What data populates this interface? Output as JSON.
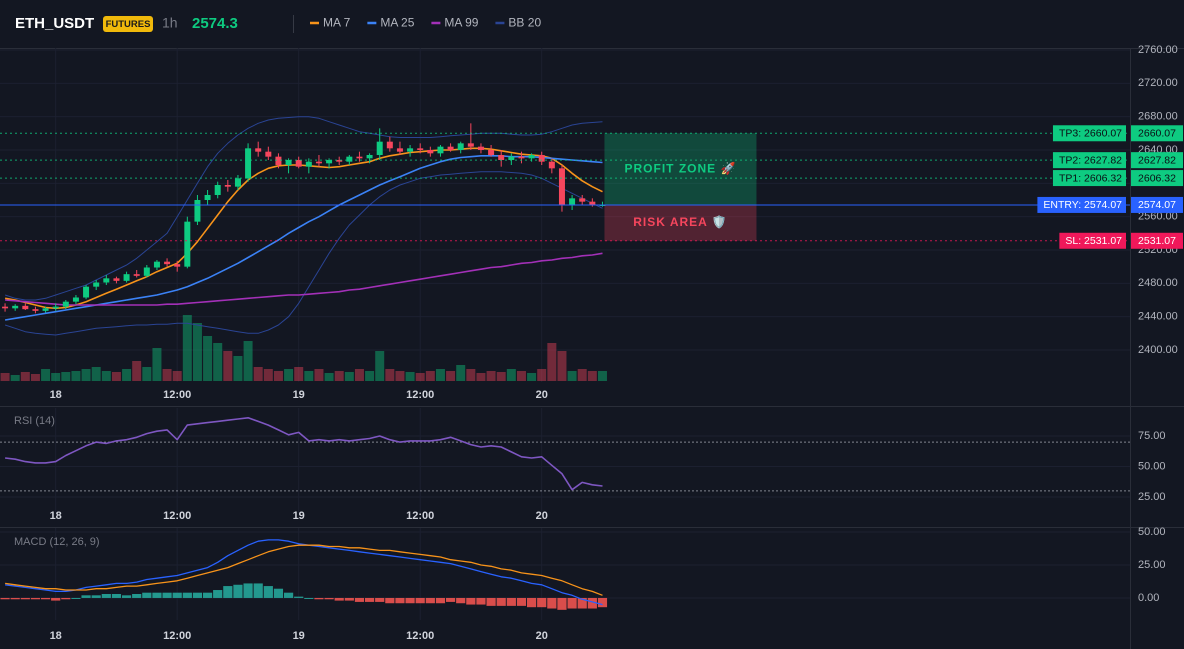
{
  "header": {
    "symbol": "ETH_USDT",
    "badge": "FUTURES",
    "interval": "1h",
    "price": "2574.3"
  },
  "chart_data": [
    {
      "type": "candlestick",
      "xlim": [
        -0.5,
        111.1
      ],
      "xticks": [
        {
          "value": 5,
          "label": "18"
        },
        {
          "value": 17,
          "label": "12:00"
        },
        {
          "value": 29,
          "label": "19"
        },
        {
          "value": 41,
          "label": "12:00"
        },
        {
          "value": 53,
          "label": "20"
        }
      ],
      "ylim": [
        2361.6,
        2762.4
      ],
      "yticks": [
        {
          "value": 2400,
          "label": "2400.00"
        },
        {
          "value": 2440,
          "label": "2440.00"
        },
        {
          "value": 2480,
          "label": "2480.00"
        },
        {
          "value": 2520,
          "label": "2520.00"
        },
        {
          "value": 2560,
          "label": "2560.00"
        },
        {
          "value": 2600,
          "label": "2600.00"
        },
        {
          "value": 2640,
          "label": "2640.00"
        },
        {
          "value": 2680,
          "label": "2680.00"
        },
        {
          "value": 2720,
          "label": "2720.00"
        },
        {
          "value": 2760,
          "label": "2760.00"
        }
      ],
      "grid": true,
      "up_color": "#0ecb81",
      "down_color": "#f6465d",
      "open": [
        2452,
        2450,
        2453,
        2449,
        2447,
        2450,
        2452,
        2458,
        2463,
        2476,
        2481,
        2486,
        2483,
        2491,
        2489,
        2499,
        2506,
        2503,
        2500,
        2554,
        2580,
        2586,
        2598,
        2596,
        2606,
        2642,
        2638,
        2632,
        2622,
        2628,
        2620,
        2626,
        2624,
        2628,
        2626,
        2632,
        2630,
        2634,
        2650,
        2642,
        2638,
        2642,
        2640,
        2636,
        2644,
        2640,
        2648,
        2644,
        2640,
        2634,
        2628,
        2632,
        2630,
        2634,
        2626,
        2618,
        2574,
        2582,
        2578,
        2574
      ],
      "high": [
        2456,
        2455,
        2456,
        2452,
        2452,
        2456,
        2460,
        2466,
        2478,
        2484,
        2490,
        2488,
        2494,
        2496,
        2502,
        2508,
        2510,
        2507,
        2560,
        2586,
        2592,
        2602,
        2604,
        2610,
        2648,
        2650,
        2644,
        2636,
        2630,
        2632,
        2630,
        2634,
        2630,
        2632,
        2634,
        2638,
        2636,
        2666,
        2656,
        2650,
        2646,
        2648,
        2644,
        2646,
        2648,
        2650,
        2672,
        2648,
        2646,
        2640,
        2636,
        2638,
        2636,
        2638,
        2630,
        2622,
        2586,
        2586,
        2582,
        2578
      ],
      "low": [
        2446,
        2447,
        2448,
        2444,
        2445,
        2447,
        2449,
        2455,
        2461,
        2472,
        2478,
        2480,
        2481,
        2487,
        2487,
        2496,
        2500,
        2494,
        2498,
        2550,
        2574,
        2582,
        2590,
        2592,
        2602,
        2632,
        2628,
        2618,
        2612,
        2618,
        2612,
        2620,
        2618,
        2622,
        2622,
        2626,
        2624,
        2628,
        2638,
        2634,
        2632,
        2636,
        2632,
        2632,
        2638,
        2636,
        2640,
        2636,
        2632,
        2620,
        2622,
        2624,
        2626,
        2622,
        2612,
        2566,
        2568,
        2574,
        2572,
        2572
      ],
      "close": [
        2450,
        2453,
        2449,
        2447,
        2450,
        2452,
        2458,
        2463,
        2476,
        2481,
        2486,
        2483,
        2491,
        2489,
        2499,
        2506,
        2503,
        2500,
        2554,
        2580,
        2586,
        2598,
        2596,
        2606,
        2642,
        2638,
        2632,
        2622,
        2628,
        2620,
        2626,
        2624,
        2628,
        2626,
        2632,
        2630,
        2634,
        2650,
        2642,
        2638,
        2642,
        2640,
        2636,
        2644,
        2640,
        2648,
        2644,
        2640,
        2634,
        2628,
        2632,
        2630,
        2634,
        2626,
        2618,
        2574,
        2582,
        2578,
        2574,
        2574
      ],
      "volume": [
        8,
        6,
        9,
        7,
        12,
        8,
        9,
        10,
        12,
        14,
        10,
        9,
        12,
        20,
        14,
        33,
        12,
        10,
        66,
        58,
        45,
        38,
        30,
        25,
        40,
        14,
        12,
        10,
        12,
        14,
        10,
        12,
        8,
        10,
        9,
        12,
        10,
        30,
        12,
        10,
        9,
        8,
        10,
        12,
        10,
        16,
        12,
        8,
        10,
        9,
        12,
        10,
        8,
        12,
        38,
        30,
        10,
        12,
        10,
        10
      ],
      "series": [
        {
          "name": "MA 7",
          "color": "#f7931a",
          "values": [
            2462,
            2460,
            2457,
            2454,
            2451,
            2450,
            2451,
            2454,
            2458,
            2463,
            2468,
            2473,
            2478,
            2483,
            2488,
            2494,
            2499,
            2504,
            2516,
            2530,
            2546,
            2562,
            2578,
            2592,
            2604,
            2612,
            2618,
            2621,
            2622,
            2622,
            2621,
            2620,
            2619,
            2620,
            2622,
            2624,
            2626,
            2630,
            2633,
            2635,
            2637,
            2638,
            2639,
            2640,
            2640,
            2641,
            2642,
            2642,
            2641,
            2639,
            2637,
            2635,
            2634,
            2633,
            2630,
            2622,
            2612,
            2603,
            2596,
            2590
          ]
        },
        {
          "name": "MA 25",
          "color": "#3b82f6",
          "values": [
            2436,
            2438,
            2440,
            2442,
            2444,
            2446,
            2448,
            2450,
            2452,
            2454,
            2456,
            2458,
            2460,
            2462,
            2464,
            2466,
            2469,
            2472,
            2476,
            2481,
            2486,
            2492,
            2498,
            2504,
            2511,
            2518,
            2525,
            2532,
            2540,
            2547,
            2554,
            2560,
            2567,
            2574,
            2580,
            2586,
            2592,
            2598,
            2603,
            2608,
            2613,
            2618,
            2622,
            2626,
            2629,
            2631,
            2632,
            2633,
            2633,
            2633,
            2632,
            2632,
            2632,
            2631,
            2630,
            2629,
            2628,
            2627,
            2626,
            2625
          ]
        },
        {
          "name": "MA 99",
          "color": "#a330b8",
          "values": [
            2460,
            2459,
            2458,
            2457,
            2456,
            2455,
            2454,
            2454,
            2454,
            2454,
            2454,
            2454,
            2454,
            2454,
            2454,
            2454,
            2455,
            2455,
            2456,
            2457,
            2458,
            2459,
            2460,
            2461,
            2462,
            2463,
            2464,
            2465,
            2466,
            2466,
            2467,
            2468,
            2469,
            2470,
            2472,
            2473,
            2475,
            2477,
            2479,
            2481,
            2483,
            2485,
            2487,
            2489,
            2491,
            2493,
            2495,
            2497,
            2499,
            2500,
            2502,
            2504,
            2505,
            2507,
            2508,
            2510,
            2511,
            2513,
            2514,
            2516
          ]
        },
        {
          "name": "BB 20",
          "color": "#2a4494",
          "values": [
            2466,
            2462,
            2460,
            2460,
            2462,
            2466,
            2470,
            2474,
            2478,
            2484,
            2490,
            2496,
            2502,
            2510,
            2520,
            2530,
            2540,
            2560,
            2580,
            2600,
            2620,
            2636,
            2648,
            2658,
            2666,
            2672,
            2676,
            2678,
            2679,
            2680,
            2680,
            2678,
            2674,
            2670,
            2666,
            2662,
            2660,
            2658,
            2656,
            2655,
            2655,
            2655,
            2655,
            2656,
            2657,
            2658,
            2659,
            2660,
            2660,
            2660,
            2659,
            2658,
            2658,
            2659,
            2662,
            2666,
            2670,
            2672,
            2673,
            2674
          ],
          "lower": [
            2430,
            2426,
            2422,
            2420,
            2419,
            2418,
            2420,
            2422,
            2424,
            2426,
            2427,
            2428,
            2429,
            2430,
            2430,
            2431,
            2431,
            2432,
            2432,
            2430,
            2428,
            2426,
            2424,
            2422,
            2420,
            2420,
            2424,
            2430,
            2440,
            2456,
            2476,
            2496,
            2516,
            2534,
            2550,
            2562,
            2574,
            2584,
            2592,
            2598,
            2602,
            2606,
            2608,
            2610,
            2611,
            2612,
            2613,
            2614,
            2614,
            2614,
            2613,
            2612,
            2610,
            2606,
            2600,
            2594,
            2588,
            2582,
            2576,
            2570
          ]
        }
      ],
      "levels": [
        {
          "label": "TP3: 2660.07",
          "value": 2660.07,
          "color": "#0ecb81",
          "text_color": "#0b0e14",
          "style": "dotted"
        },
        {
          "label": "TP2: 2627.82",
          "value": 2627.82,
          "color": "#0ecb81",
          "text_color": "#0b0e14",
          "style": "dotted"
        },
        {
          "label": "TP1: 2606.32",
          "value": 2606.32,
          "color": "#0ecb81",
          "text_color": "#0b0e14",
          "style": "dotted"
        },
        {
          "label": "ENTRY: 2574.07",
          "value": 2574.07,
          "color": "#2962ff",
          "text_color": "#ffffff",
          "style": "solid"
        },
        {
          "label": "SL: 2531.07",
          "value": 2531.07,
          "color": "#f0185a",
          "text_color": "#ffffff",
          "style": "dotted"
        }
      ],
      "zones": [
        {
          "label": "PROFIT ZONE 🚀",
          "from": 2660.07,
          "to": 2574.07,
          "color": "#0ecb81"
        },
        {
          "label": "RISK AREA 🛡️",
          "from": 2574.07,
          "to": 2531.07,
          "color": "#f6465d"
        }
      ]
    },
    {
      "type": "line",
      "title": "RSI (14)",
      "color": "#7e57c2",
      "xlim": [
        -0.5,
        111.1
      ],
      "xticks": [
        {
          "value": 5,
          "label": "18"
        },
        {
          "value": 17,
          "label": "12:00"
        },
        {
          "value": 29,
          "label": "19"
        },
        {
          "value": 41,
          "label": "12:00"
        },
        {
          "value": 53,
          "label": "20"
        }
      ],
      "ylim": [
        12.7,
        98
      ],
      "yticks": [
        {
          "value": 25,
          "label": "25.00"
        },
        {
          "value": 50,
          "label": "50.00"
        },
        {
          "value": 75,
          "label": "75.00"
        }
      ],
      "levels": [
        70,
        30
      ],
      "values": [
        57,
        56,
        54,
        53,
        53,
        54,
        59,
        63,
        67,
        70,
        69,
        71,
        72,
        74,
        77,
        79,
        80,
        72,
        84,
        85,
        86,
        87,
        88,
        89,
        90,
        87,
        84,
        80,
        76,
        78,
        71,
        72,
        71,
        72,
        71,
        72,
        73,
        75,
        72,
        70,
        71,
        71,
        71,
        72,
        74,
        71,
        68,
        66,
        67,
        66,
        62,
        58,
        57,
        58,
        51,
        44,
        31,
        37,
        35,
        34
      ]
    },
    {
      "type": "macd",
      "title": "MACD (12, 26, 9)",
      "xlim": [
        -0.5,
        111.1
      ],
      "xticks": [
        {
          "value": 5,
          "label": "18"
        },
        {
          "value": 17,
          "label": "12:00"
        },
        {
          "value": 29,
          "label": "19"
        },
        {
          "value": 41,
          "label": "12:00"
        },
        {
          "value": 53,
          "label": "20"
        }
      ],
      "ylim": [
        -16.7,
        53
      ],
      "yticks": [
        {
          "value": 0,
          "label": "0.00"
        },
        {
          "value": 25,
          "label": "25.00"
        },
        {
          "value": 50,
          "label": "50.00"
        }
      ],
      "series": [
        {
          "color": "#2962ff",
          "values": [
            10,
            9,
            8,
            7,
            6,
            5,
            5,
            6,
            8,
            9,
            10,
            11,
            11,
            12,
            14,
            15,
            16,
            17,
            19,
            21,
            23,
            27,
            32,
            36,
            40,
            43,
            44,
            44,
            43,
            41,
            40,
            39,
            38,
            37,
            36,
            35,
            34,
            33,
            32,
            31,
            30,
            29,
            28,
            27,
            26,
            24,
            22,
            20,
            18,
            16,
            15,
            13,
            11,
            10,
            7,
            4,
            2,
            -1,
            -3,
            -5
          ]
        },
        {
          "color": "#f7931a",
          "values": [
            11,
            10,
            9,
            8,
            7,
            7,
            6,
            6,
            6,
            7,
            7,
            8,
            9,
            9,
            10,
            11,
            12,
            13,
            15,
            17,
            19,
            21,
            23,
            26,
            29,
            32,
            35,
            37,
            39,
            40,
            40,
            40,
            39,
            39,
            38,
            38,
            37,
            36,
            36,
            35,
            34,
            33,
            32,
            31,
            29,
            28,
            27,
            25,
            24,
            22,
            21,
            19,
            18,
            17,
            15,
            13,
            10,
            7,
            5,
            2
          ]
        }
      ],
      "histogram": {
        "positive_color": "#26a69a",
        "negative_color": "#ef5350",
        "values": [
          -1,
          -1,
          -1,
          -1,
          -1,
          -2,
          -1,
          0,
          2,
          2,
          3,
          3,
          2,
          3,
          4,
          4,
          4,
          4,
          4,
          4,
          4,
          6,
          9,
          10,
          11,
          11,
          9,
          7,
          4,
          1,
          0,
          -1,
          -1,
          -2,
          -2,
          -3,
          -3,
          -3,
          -4,
          -4,
          -4,
          -4,
          -4,
          -4,
          -3,
          -4,
          -5,
          -5,
          -6,
          -6,
          -6,
          -6,
          -7,
          -7,
          -8,
          -9,
          -8,
          -8,
          -8,
          -7
        ]
      }
    }
  ]
}
